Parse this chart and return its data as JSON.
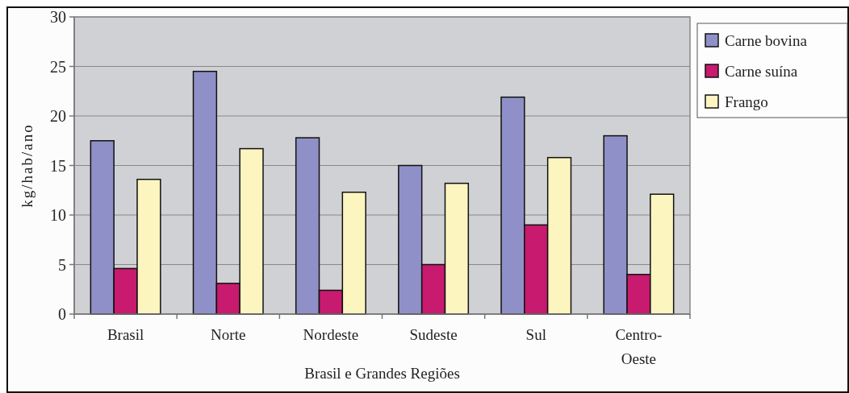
{
  "chart_data": {
    "type": "bar",
    "xlabel": "Brasil e Grandes Regiões",
    "ylabel": "kg/hab/ano",
    "categories": [
      "Brasil",
      "Norte",
      "Nordeste",
      "Sudeste",
      "Sul",
      "Centro-Oeste"
    ],
    "series": [
      {
        "name": "Carne bovina",
        "color": "#9090c8",
        "values": [
          17.5,
          24.5,
          17.8,
          15.0,
          21.9,
          18.0
        ]
      },
      {
        "name": "Carne suína",
        "color": "#c81a6e",
        "values": [
          4.6,
          3.1,
          2.4,
          5.0,
          9.0,
          4.0
        ]
      },
      {
        "name": "Frango",
        "color": "#fdf5c0",
        "values": [
          13.6,
          16.7,
          12.3,
          13.2,
          15.8,
          12.1
        ]
      }
    ],
    "ylim": [
      0,
      30
    ],
    "yticks": [
      0,
      5,
      10,
      15,
      20,
      25,
      30
    ],
    "grid": "y",
    "legend": "top right"
  }
}
